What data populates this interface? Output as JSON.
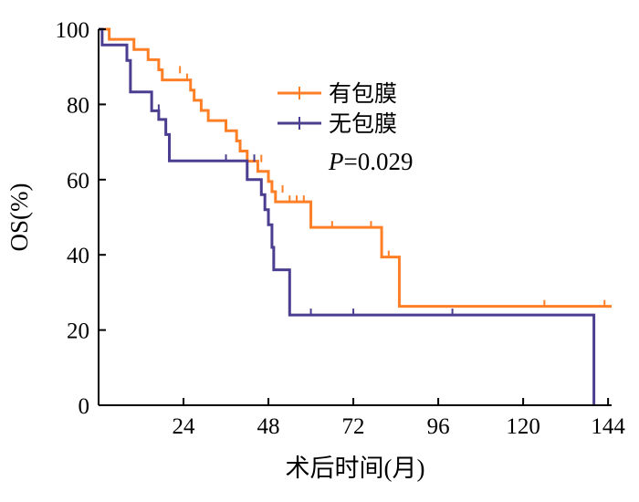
{
  "chart_data": {
    "type": "line",
    "subtype": "kaplan-meier",
    "xlabel": "术后时间(月)",
    "ylabel": "OS(%)",
    "xlim": [
      0,
      145
    ],
    "ylim": [
      0,
      100
    ],
    "xticks": [
      24,
      48,
      72,
      96,
      120,
      144
    ],
    "yticks": [
      0,
      20,
      40,
      60,
      80,
      100
    ],
    "grid": false,
    "legend_position": "top-right",
    "annotation": {
      "prefix": "P",
      "text": "=0.029"
    },
    "series": [
      {
        "name": "有包膜",
        "color": "#ff7f27",
        "steps": [
          [
            0,
            100
          ],
          [
            3,
            97.3
          ],
          [
            10,
            94.6
          ],
          [
            14,
            91.9
          ],
          [
            17,
            89.2
          ],
          [
            18,
            86.5
          ],
          [
            26,
            83.8
          ],
          [
            27,
            81.1
          ],
          [
            29,
            78.4
          ],
          [
            31,
            75.7
          ],
          [
            36,
            73.0
          ],
          [
            39,
            70.3
          ],
          [
            40,
            67.6
          ],
          [
            42,
            64.9
          ],
          [
            45,
            62.2
          ],
          [
            48,
            59.5
          ],
          [
            49,
            56.8
          ],
          [
            50,
            54.1
          ],
          [
            60,
            47.3
          ],
          [
            80,
            39.4
          ],
          [
            85,
            26.3
          ],
          [
            145,
            26.3
          ]
        ],
        "censored": [
          [
            23,
            88.5
          ],
          [
            25,
            86.5
          ],
          [
            29,
            78.4
          ],
          [
            40,
            67.6
          ],
          [
            46,
            64.9
          ],
          [
            50,
            54.1
          ],
          [
            52,
            56.8
          ],
          [
            54,
            54.1
          ],
          [
            56,
            54.1
          ],
          [
            58,
            54.1
          ],
          [
            66,
            47.3
          ],
          [
            77,
            47.3
          ],
          [
            82,
            39.4
          ],
          [
            126,
            26.3
          ],
          [
            143,
            26.3
          ]
        ]
      },
      {
        "name": "无包膜",
        "color": "#4b3d8f",
        "steps": [
          [
            0,
            100
          ],
          [
            1,
            95.8
          ],
          [
            8,
            91.7
          ],
          [
            9,
            83.3
          ],
          [
            15,
            78.3
          ],
          [
            17,
            76.0
          ],
          [
            19,
            72.0
          ],
          [
            20,
            65.0
          ],
          [
            42,
            60.0
          ],
          [
            46,
            56.0
          ],
          [
            47,
            52.0
          ],
          [
            48,
            48.0
          ],
          [
            49,
            42.0
          ],
          [
            49.5,
            36.0
          ],
          [
            54,
            24.0
          ],
          [
            140,
            0
          ]
        ],
        "censored": [
          [
            17,
            78.3
          ],
          [
            36,
            65.0
          ],
          [
            44,
            65.0
          ],
          [
            60,
            24.0
          ],
          [
            72,
            24.0
          ],
          [
            100,
            24.0
          ]
        ]
      }
    ]
  }
}
